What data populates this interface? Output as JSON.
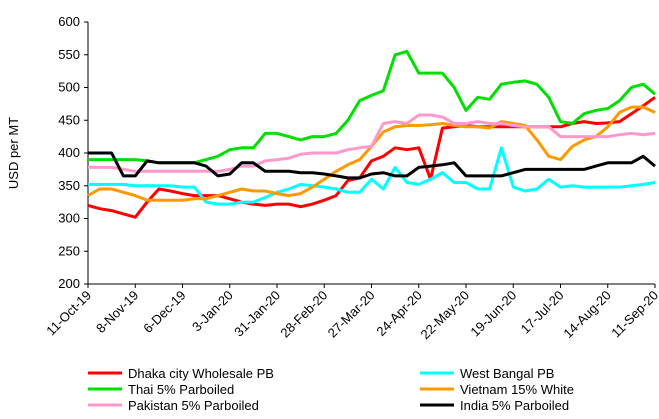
{
  "chart_data": {
    "type": "line",
    "y_label": "USD per MT",
    "categories": [
      "11-Oct-19",
      null,
      null,
      null,
      "8-Nov-19",
      null,
      null,
      null,
      "6-Dec-19",
      null,
      null,
      null,
      "3-Jan-20",
      null,
      null,
      null,
      "31-Jan-20",
      null,
      null,
      null,
      "28-Feb-20",
      null,
      null,
      null,
      "27-Mar-20",
      null,
      null,
      null,
      "24-Apr-20",
      null,
      null,
      null,
      "22-May-20",
      null,
      null,
      null,
      "19-Jun-20",
      null,
      null,
      null,
      "17-Jul-20",
      null,
      null,
      null,
      "14-Aug-20",
      null,
      null,
      null,
      "11-Sep-20"
    ],
    "ylim": [
      200,
      600
    ],
    "yticks": [
      200,
      250,
      300,
      350,
      400,
      450,
      500,
      550,
      600
    ],
    "series": [
      {
        "name": "Dhaka city Wholesale PB",
        "color": "#ff0000",
        "values": [
          320,
          315,
          312,
          307,
          302,
          325,
          345,
          342,
          338,
          335,
          335,
          335,
          330,
          325,
          322,
          320,
          322,
          322,
          318,
          322,
          328,
          335,
          358,
          362,
          388,
          395,
          408,
          405,
          408,
          360,
          438,
          440,
          442,
          440,
          440,
          440,
          440,
          440,
          440,
          440,
          440,
          445,
          448,
          445,
          446,
          448,
          460,
          472,
          485
        ]
      },
      {
        "name": "West Bangal PB",
        "color": "#00ffff",
        "values": [
          352,
          352,
          352,
          352,
          350,
          350,
          350,
          350,
          348,
          348,
          325,
          322,
          322,
          325,
          325,
          332,
          340,
          345,
          352,
          350,
          348,
          345,
          340,
          340,
          360,
          345,
          378,
          355,
          352,
          360,
          370,
          355,
          355,
          345,
          345,
          408,
          348,
          342,
          345,
          360,
          348,
          350,
          348,
          348,
          348,
          348,
          350,
          352,
          355
        ]
      },
      {
        "name": "Thai 5% Parboiled",
        "color": "#00e000",
        "values": [
          390,
          390,
          390,
          390,
          390,
          388,
          385,
          385,
          385,
          385,
          390,
          395,
          405,
          408,
          408,
          430,
          430,
          425,
          420,
          425,
          425,
          430,
          450,
          480,
          488,
          495,
          550,
          555,
          522,
          522,
          522,
          500,
          465,
          485,
          482,
          505,
          508,
          510,
          505,
          485,
          448,
          445,
          460,
          465,
          468,
          480,
          500,
          505,
          490
        ]
      },
      {
        "name": "Vietnam 15% White",
        "color": "#ff9900",
        "values": [
          335,
          345,
          345,
          340,
          335,
          328,
          328,
          328,
          328,
          330,
          330,
          335,
          340,
          345,
          342,
          342,
          338,
          335,
          338,
          348,
          360,
          372,
          382,
          390,
          410,
          432,
          440,
          442,
          442,
          443,
          445,
          442,
          440,
          440,
          438,
          448,
          445,
          442,
          420,
          395,
          390,
          410,
          420,
          425,
          440,
          462,
          470,
          470,
          462
        ]
      },
      {
        "name": "Pakistan 5% Parboiled",
        "color": "#ff99cc",
        "values": [
          378,
          378,
          378,
          375,
          372,
          372,
          372,
          372,
          372,
          372,
          372,
          372,
          375,
          380,
          380,
          388,
          390,
          392,
          398,
          400,
          400,
          400,
          405,
          408,
          410,
          445,
          448,
          445,
          458,
          458,
          455,
          445,
          445,
          448,
          445,
          445,
          442,
          440,
          440,
          440,
          425,
          425,
          425,
          425,
          425,
          428,
          430,
          428,
          430
        ]
      },
      {
        "name": "India 5% Parboiled",
        "color": "#000000",
        "values": [
          400,
          400,
          400,
          365,
          365,
          388,
          385,
          385,
          385,
          385,
          380,
          365,
          368,
          385,
          385,
          372,
          372,
          372,
          370,
          370,
          368,
          365,
          362,
          362,
          368,
          370,
          365,
          365,
          378,
          380,
          382,
          385,
          365,
          365,
          365,
          365,
          370,
          375,
          375,
          375,
          375,
          375,
          375,
          380,
          385,
          385,
          385,
          395,
          380
        ]
      }
    ]
  }
}
